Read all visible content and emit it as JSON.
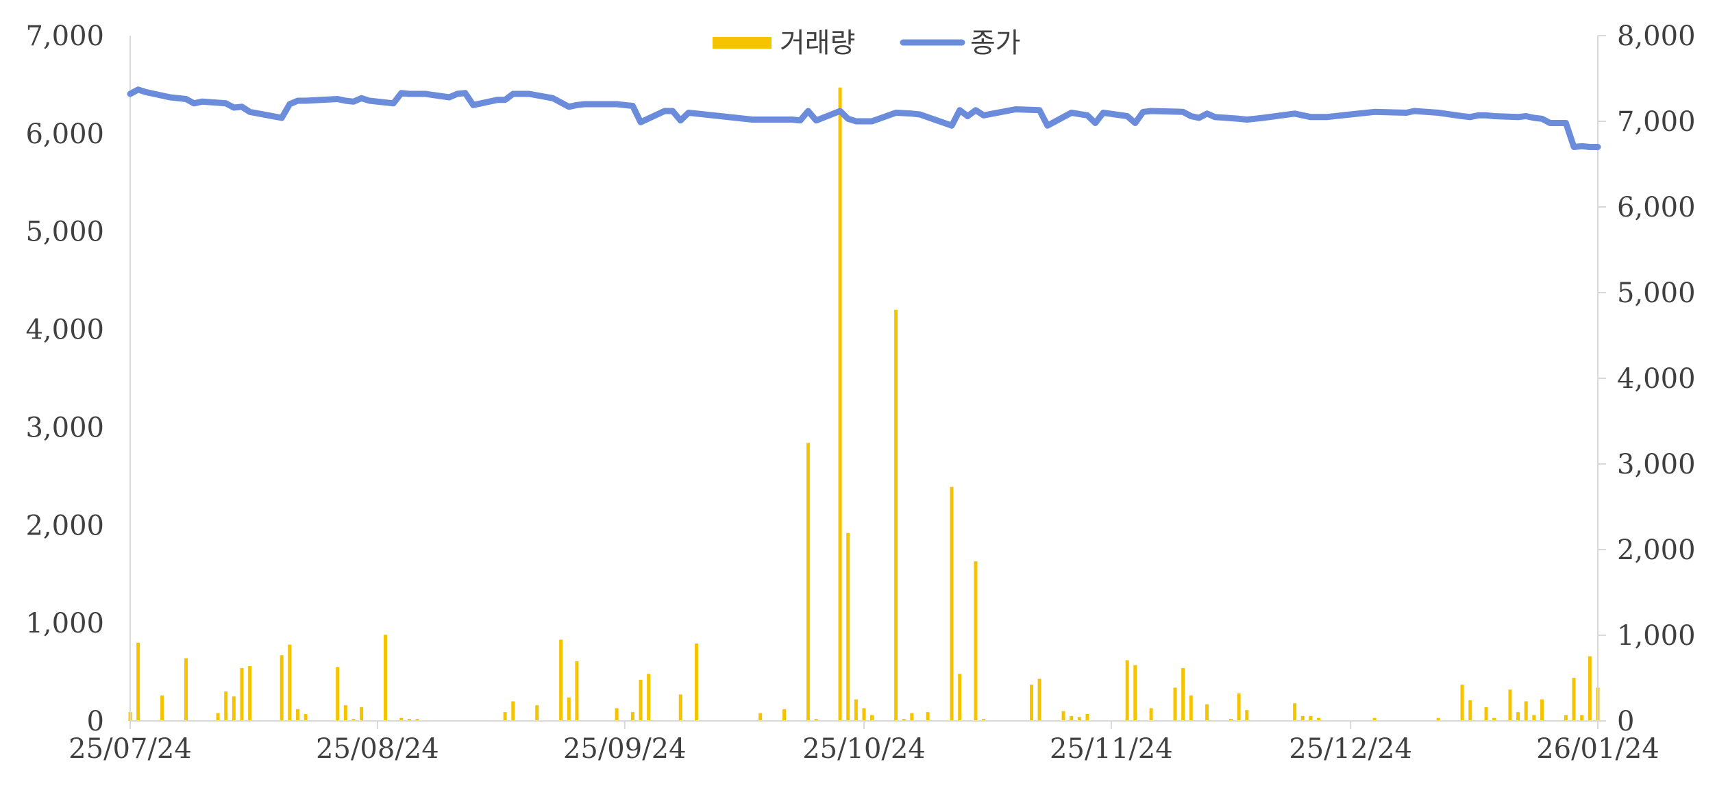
{
  "chart_data": {
    "type": "bar+line",
    "title": "",
    "legend": {
      "placement": "top-center",
      "entries": [
        {
          "name": "거래량",
          "kind": "bar",
          "color": "#F5C300"
        },
        {
          "name": "종가",
          "kind": "line",
          "color": "#6A8CDB"
        }
      ]
    },
    "x_axis": {
      "start": "2025-07-24",
      "end": "2026-01-24",
      "tick_dates": [
        "2025-07-24",
        "2025-08-24",
        "2025-09-24",
        "2025-10-24",
        "2025-11-24",
        "2025-12-24",
        "2026-01-24"
      ],
      "tick_labels": [
        "25/07/24",
        "25/08/24",
        "25/09/24",
        "25/10/24",
        "25/11/24",
        "25/12/24",
        "26/01/24"
      ]
    },
    "y_left": {
      "series": "거래량",
      "ylim": [
        0,
        7000
      ],
      "ticks": [
        0,
        1000,
        2000,
        3000,
        4000,
        5000,
        6000,
        7000
      ],
      "tick_labels": [
        "0",
        "1,000",
        "2,000",
        "3,000",
        "4,000",
        "5,000",
        "6,000",
        "7,000"
      ]
    },
    "y_right": {
      "series": "종가",
      "ylim": [
        0,
        8000
      ],
      "ticks": [
        0,
        1000,
        2000,
        3000,
        4000,
        5000,
        6000,
        7000,
        8000
      ],
      "tick_labels": [
        "0",
        "1,000",
        "2,000",
        "3,000",
        "4,000",
        "5,000",
        "6,000",
        "7,000",
        "8,000"
      ]
    },
    "grid": false,
    "series": [
      {
        "name": "거래량",
        "type": "bar",
        "axis": "left",
        "color": "#F5C300",
        "points": [
          [
            "2025-07-24",
            90
          ],
          [
            "2025-07-25",
            800
          ],
          [
            "2025-07-28",
            260
          ],
          [
            "2025-07-31",
            640
          ],
          [
            "2025-08-04",
            80
          ],
          [
            "2025-08-05",
            300
          ],
          [
            "2025-08-06",
            250
          ],
          [
            "2025-08-07",
            540
          ],
          [
            "2025-08-08",
            560
          ],
          [
            "2025-08-12",
            670
          ],
          [
            "2025-08-13",
            780
          ],
          [
            "2025-08-14",
            120
          ],
          [
            "2025-08-15",
            70
          ],
          [
            "2025-08-19",
            550
          ],
          [
            "2025-08-20",
            160
          ],
          [
            "2025-08-21",
            20
          ],
          [
            "2025-08-22",
            140
          ],
          [
            "2025-08-25",
            880
          ],
          [
            "2025-08-27",
            30
          ],
          [
            "2025-08-28",
            20
          ],
          [
            "2025-08-29",
            20
          ],
          [
            "2025-09-09",
            90
          ],
          [
            "2025-09-10",
            200
          ],
          [
            "2025-09-13",
            160
          ],
          [
            "2025-09-16",
            830
          ],
          [
            "2025-09-17",
            240
          ],
          [
            "2025-09-18",
            610
          ],
          [
            "2025-09-23",
            130
          ],
          [
            "2025-09-25",
            90
          ],
          [
            "2025-09-26",
            420
          ],
          [
            "2025-09-27",
            480
          ],
          [
            "2025-10-01",
            270
          ],
          [
            "2025-10-03",
            790
          ],
          [
            "2025-10-11",
            80
          ],
          [
            "2025-10-14",
            120
          ],
          [
            "2025-10-17",
            2840
          ],
          [
            "2025-10-18",
            20
          ],
          [
            "2025-10-21",
            6470
          ],
          [
            "2025-10-22",
            1920
          ],
          [
            "2025-10-23",
            220
          ],
          [
            "2025-10-24",
            130
          ],
          [
            "2025-10-25",
            60
          ],
          [
            "2025-10-28",
            4200
          ],
          [
            "2025-10-29",
            20
          ],
          [
            "2025-10-30",
            80
          ],
          [
            "2025-11-01",
            90
          ],
          [
            "2025-11-04",
            2390
          ],
          [
            "2025-11-05",
            480
          ],
          [
            "2025-11-07",
            1630
          ],
          [
            "2025-11-08",
            20
          ],
          [
            "2025-11-14",
            370
          ],
          [
            "2025-11-15",
            430
          ],
          [
            "2025-11-18",
            100
          ],
          [
            "2025-11-19",
            50
          ],
          [
            "2025-11-20",
            40
          ],
          [
            "2025-11-21",
            70
          ],
          [
            "2025-11-26",
            620
          ],
          [
            "2025-11-27",
            570
          ],
          [
            "2025-11-29",
            130
          ],
          [
            "2025-12-02",
            340
          ],
          [
            "2025-12-03",
            540
          ],
          [
            "2025-12-04",
            260
          ],
          [
            "2025-12-06",
            170
          ],
          [
            "2025-12-09",
            20
          ],
          [
            "2025-12-10",
            280
          ],
          [
            "2025-12-11",
            110
          ],
          [
            "2025-12-17",
            180
          ],
          [
            "2025-12-18",
            50
          ],
          [
            "2025-12-19",
            50
          ],
          [
            "2025-12-20",
            30
          ],
          [
            "2025-12-27",
            30
          ],
          [
            "2026-01-04",
            30
          ],
          [
            "2026-01-07",
            370
          ],
          [
            "2026-01-08",
            210
          ],
          [
            "2026-01-10",
            140
          ],
          [
            "2026-01-11",
            30
          ],
          [
            "2026-01-13",
            320
          ],
          [
            "2026-01-14",
            90
          ],
          [
            "2026-01-15",
            200
          ],
          [
            "2026-01-16",
            60
          ],
          [
            "2026-01-17",
            220
          ],
          [
            "2026-01-20",
            60
          ],
          [
            "2026-01-21",
            440
          ],
          [
            "2026-01-22",
            60
          ],
          [
            "2026-01-23",
            660
          ],
          [
            "2026-01-24",
            340
          ]
        ]
      },
      {
        "name": "종가",
        "type": "line",
        "axis": "right",
        "color": "#6A8CDB",
        "points": [
          [
            "2025-07-24",
            7320
          ],
          [
            "2025-07-25",
            7370
          ],
          [
            "2025-07-26",
            7340
          ],
          [
            "2025-07-29",
            7280
          ],
          [
            "2025-07-31",
            7260
          ],
          [
            "2025-08-01",
            7210
          ],
          [
            "2025-08-02",
            7230
          ],
          [
            "2025-08-05",
            7210
          ],
          [
            "2025-08-06",
            7160
          ],
          [
            "2025-08-07",
            7170
          ],
          [
            "2025-08-08",
            7110
          ],
          [
            "2025-08-12",
            7040
          ],
          [
            "2025-08-13",
            7200
          ],
          [
            "2025-08-14",
            7240
          ],
          [
            "2025-08-15",
            7240
          ],
          [
            "2025-08-19",
            7260
          ],
          [
            "2025-08-20",
            7240
          ],
          [
            "2025-08-21",
            7230
          ],
          [
            "2025-08-22",
            7270
          ],
          [
            "2025-08-23",
            7240
          ],
          [
            "2025-08-26",
            7210
          ],
          [
            "2025-08-27",
            7330
          ],
          [
            "2025-08-28",
            7320
          ],
          [
            "2025-08-30",
            7320
          ],
          [
            "2025-09-02",
            7280
          ],
          [
            "2025-09-03",
            7320
          ],
          [
            "2025-09-04",
            7330
          ],
          [
            "2025-09-05",
            7190
          ],
          [
            "2025-09-08",
            7250
          ],
          [
            "2025-09-09",
            7250
          ],
          [
            "2025-09-10",
            7320
          ],
          [
            "2025-09-12",
            7320
          ],
          [
            "2025-09-15",
            7270
          ],
          [
            "2025-09-17",
            7170
          ],
          [
            "2025-09-18",
            7190
          ],
          [
            "2025-09-19",
            7200
          ],
          [
            "2025-09-23",
            7200
          ],
          [
            "2025-09-24",
            7190
          ],
          [
            "2025-09-25",
            7180
          ],
          [
            "2025-09-26",
            6990
          ],
          [
            "2025-09-29",
            7120
          ],
          [
            "2025-09-30",
            7120
          ],
          [
            "2025-10-01",
            7010
          ],
          [
            "2025-10-02",
            7100
          ],
          [
            "2025-10-10",
            7020
          ],
          [
            "2025-10-15",
            7020
          ],
          [
            "2025-10-16",
            7010
          ],
          [
            "2025-10-17",
            7120
          ],
          [
            "2025-10-18",
            7010
          ],
          [
            "2025-10-21",
            7120
          ],
          [
            "2025-10-22",
            7030
          ],
          [
            "2025-10-23",
            7000
          ],
          [
            "2025-10-25",
            7000
          ],
          [
            "2025-10-28",
            7100
          ],
          [
            "2025-10-30",
            7090
          ],
          [
            "2025-10-31",
            7080
          ],
          [
            "2025-11-04",
            6950
          ],
          [
            "2025-11-05",
            7130
          ],
          [
            "2025-11-06",
            7060
          ],
          [
            "2025-11-07",
            7130
          ],
          [
            "2025-11-08",
            7070
          ],
          [
            "2025-11-12",
            7140
          ],
          [
            "2025-11-15",
            7130
          ],
          [
            "2025-11-16",
            6950
          ],
          [
            "2025-11-19",
            7100
          ],
          [
            "2025-11-21",
            7070
          ],
          [
            "2025-11-22",
            6980
          ],
          [
            "2025-11-23",
            7100
          ],
          [
            "2025-11-26",
            7060
          ],
          [
            "2025-11-27",
            6980
          ],
          [
            "2025-11-28",
            7110
          ],
          [
            "2025-11-29",
            7120
          ],
          [
            "2025-12-03",
            7110
          ],
          [
            "2025-12-04",
            7060
          ],
          [
            "2025-12-05",
            7040
          ],
          [
            "2025-12-06",
            7090
          ],
          [
            "2025-12-07",
            7050
          ],
          [
            "2025-12-10",
            7030
          ],
          [
            "2025-12-11",
            7020
          ],
          [
            "2025-12-12",
            7030
          ],
          [
            "2025-12-13",
            7040
          ],
          [
            "2025-12-17",
            7090
          ],
          [
            "2025-12-18",
            7070
          ],
          [
            "2025-12-19",
            7050
          ],
          [
            "2025-12-21",
            7050
          ],
          [
            "2025-12-24",
            7080
          ],
          [
            "2025-12-27",
            7110
          ],
          [
            "2025-12-31",
            7100
          ],
          [
            "2026-01-01",
            7120
          ],
          [
            "2026-01-04",
            7100
          ],
          [
            "2026-01-07",
            7060
          ],
          [
            "2026-01-08",
            7050
          ],
          [
            "2026-01-09",
            7070
          ],
          [
            "2026-01-10",
            7070
          ],
          [
            "2026-01-11",
            7060
          ],
          [
            "2026-01-14",
            7050
          ],
          [
            "2026-01-15",
            7060
          ],
          [
            "2026-01-16",
            7040
          ],
          [
            "2026-01-17",
            7030
          ],
          [
            "2026-01-18",
            6980
          ],
          [
            "2026-01-20",
            6980
          ],
          [
            "2026-01-21",
            6700
          ],
          [
            "2026-01-22",
            6710
          ],
          [
            "2026-01-23",
            6700
          ],
          [
            "2026-01-24",
            6700
          ]
        ]
      }
    ]
  }
}
